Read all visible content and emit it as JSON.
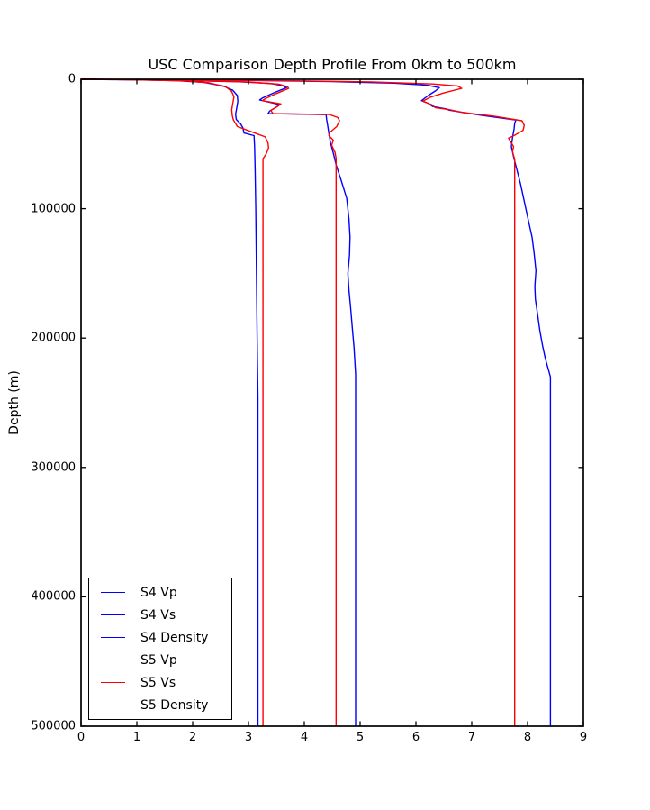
{
  "chart_data": {
    "type": "line",
    "title": "USC Comparison Depth Profile From 0km to 500km",
    "xlabel": "",
    "ylabel": "Depth (m)",
    "xlim": [
      0,
      9
    ],
    "ylim": [
      0,
      500000
    ],
    "y_axis_inverted": true,
    "grid": false,
    "legend_position": "lower left",
    "x_tick_labels": [
      "0",
      "1",
      "2",
      "3",
      "4",
      "5",
      "6",
      "7",
      "8",
      "9"
    ],
    "y_tick_labels": [
      "0",
      "100000",
      "200000",
      "300000",
      "400000",
      "500000"
    ],
    "axis_color": "#000000",
    "series": [
      {
        "name": "S4 Vp",
        "color": "#0000ff",
        "points": [
          [
            0.0,
            0
          ],
          [
            1.5,
            300
          ],
          [
            3.0,
            900
          ],
          [
            4.5,
            1800
          ],
          [
            5.6,
            3000
          ],
          [
            6.2,
            4600
          ],
          [
            6.42,
            6500
          ],
          [
            6.35,
            9000
          ],
          [
            6.22,
            12500
          ],
          [
            6.1,
            16500
          ],
          [
            6.22,
            18500
          ],
          [
            6.3,
            21000
          ],
          [
            6.55,
            23000
          ],
          [
            6.6,
            23900
          ],
          [
            6.82,
            25500
          ],
          [
            7.2,
            28000
          ],
          [
            7.79,
            31500
          ],
          [
            7.77,
            34000
          ],
          [
            7.76,
            38000
          ],
          [
            7.73,
            45000
          ],
          [
            7.71,
            52000
          ],
          [
            7.75,
            60000
          ],
          [
            7.81,
            70000
          ],
          [
            7.87,
            80000
          ],
          [
            7.92,
            90000
          ],
          [
            7.97,
            100000
          ],
          [
            8.02,
            110000
          ],
          [
            8.08,
            122000
          ],
          [
            8.12,
            135000
          ],
          [
            8.15,
            148000
          ],
          [
            8.13,
            160000
          ],
          [
            8.14,
            170000
          ],
          [
            8.18,
            182000
          ],
          [
            8.22,
            194000
          ],
          [
            8.27,
            206000
          ],
          [
            8.32,
            216000
          ],
          [
            8.41,
            230000
          ],
          [
            8.41,
            500000
          ]
        ]
      },
      {
        "name": "S4 Vs",
        "color": "#0000ff",
        "points": [
          [
            0.0,
            0
          ],
          [
            0.8,
            300
          ],
          [
            1.8,
            900
          ],
          [
            2.8,
            1900
          ],
          [
            3.4,
            3300
          ],
          [
            3.62,
            5000
          ],
          [
            3.68,
            6500
          ],
          [
            3.45,
            10500
          ],
          [
            3.25,
            14500
          ],
          [
            3.2,
            16000
          ],
          [
            3.55,
            19500
          ],
          [
            3.5,
            21500
          ],
          [
            3.38,
            24500
          ],
          [
            3.35,
            26500
          ],
          [
            4.39,
            27300
          ],
          [
            4.4,
            31000
          ],
          [
            4.42,
            36000
          ],
          [
            4.44,
            42000
          ],
          [
            4.47,
            49000
          ],
          [
            4.52,
            57000
          ],
          [
            4.57,
            66000
          ],
          [
            4.66,
            78000
          ],
          [
            4.76,
            92000
          ],
          [
            4.8,
            108000
          ],
          [
            4.82,
            122000
          ],
          [
            4.81,
            136000
          ],
          [
            4.78,
            150000
          ],
          [
            4.8,
            163000
          ],
          [
            4.83,
            177000
          ],
          [
            4.86,
            192000
          ],
          [
            4.89,
            207000
          ],
          [
            4.92,
            228000
          ],
          [
            4.92,
            500000
          ]
        ]
      },
      {
        "name": "S4 Density",
        "color": "#0000ff",
        "points": [
          [
            0.0,
            0
          ],
          [
            0.9,
            400
          ],
          [
            1.7,
            1100
          ],
          [
            2.2,
            2400
          ],
          [
            2.55,
            5200
          ],
          [
            2.72,
            8500
          ],
          [
            2.8,
            12500
          ],
          [
            2.81,
            17000
          ],
          [
            2.79,
            22000
          ],
          [
            2.77,
            27000
          ],
          [
            2.78,
            31000
          ],
          [
            2.86,
            34500
          ],
          [
            2.9,
            37500
          ],
          [
            2.92,
            41500
          ],
          [
            3.1,
            43500
          ],
          [
            3.11,
            52000
          ],
          [
            3.12,
            70000
          ],
          [
            3.13,
            100000
          ],
          [
            3.14,
            140000
          ],
          [
            3.15,
            180000
          ],
          [
            3.16,
            215000
          ],
          [
            3.17,
            245000
          ],
          [
            3.17,
            500000
          ]
        ]
      },
      {
        "name": "S5 Vp",
        "color": "#ff0000",
        "points": [
          [
            0.0,
            0
          ],
          [
            1.8,
            350
          ],
          [
            3.5,
            1000
          ],
          [
            5.2,
            2000
          ],
          [
            6.3,
            3600
          ],
          [
            6.75,
            5200
          ],
          [
            6.82,
            7000
          ],
          [
            6.5,
            10500
          ],
          [
            6.25,
            14000
          ],
          [
            6.12,
            17000
          ],
          [
            6.28,
            19500
          ],
          [
            6.35,
            22000
          ],
          [
            6.6,
            23500
          ],
          [
            6.85,
            25800
          ],
          [
            7.4,
            28500
          ],
          [
            7.9,
            32000
          ],
          [
            7.94,
            35500
          ],
          [
            7.92,
            39500
          ],
          [
            7.78,
            43000
          ],
          [
            7.66,
            45500
          ],
          [
            7.7,
            48500
          ],
          [
            7.75,
            52000
          ],
          [
            7.73,
            56000
          ],
          [
            7.77,
            62000
          ],
          [
            7.77,
            500000
          ]
        ]
      },
      {
        "name": "S5 Vs",
        "color": "#ff0000",
        "points": [
          [
            0.0,
            0
          ],
          [
            0.9,
            350
          ],
          [
            2.0,
            1000
          ],
          [
            3.0,
            2100
          ],
          [
            3.55,
            3800
          ],
          [
            3.7,
            5800
          ],
          [
            3.72,
            7000
          ],
          [
            3.5,
            11000
          ],
          [
            3.3,
            15000
          ],
          [
            3.25,
            16500
          ],
          [
            3.58,
            19000
          ],
          [
            3.52,
            21000
          ],
          [
            3.4,
            24000
          ],
          [
            3.44,
            26500
          ],
          [
            4.45,
            27200
          ],
          [
            4.6,
            29500
          ],
          [
            4.63,
            32000
          ],
          [
            4.58,
            36500
          ],
          [
            4.46,
            41000
          ],
          [
            4.44,
            43500
          ],
          [
            4.52,
            47000
          ],
          [
            4.49,
            51000
          ],
          [
            4.55,
            56500
          ],
          [
            4.57,
            61000
          ],
          [
            4.57,
            500000
          ]
        ]
      },
      {
        "name": "S5 Density",
        "color": "#ff0000",
        "points": [
          [
            0.0,
            0
          ],
          [
            1.0,
            450
          ],
          [
            1.9,
            1300
          ],
          [
            2.3,
            2800
          ],
          [
            2.6,
            6000
          ],
          [
            2.7,
            9500
          ],
          [
            2.74,
            13500
          ],
          [
            2.72,
            18500
          ],
          [
            2.7,
            23500
          ],
          [
            2.71,
            28000
          ],
          [
            2.73,
            31500
          ],
          [
            2.8,
            36500
          ],
          [
            3.05,
            40500
          ],
          [
            3.3,
            44500
          ],
          [
            3.35,
            49000
          ],
          [
            3.36,
            53000
          ],
          [
            3.32,
            57500
          ],
          [
            3.26,
            61500
          ],
          [
            3.26,
            500000
          ]
        ]
      }
    ]
  },
  "legend": {
    "entries": [
      {
        "label": "S4 Vp",
        "color": "#0000ff"
      },
      {
        "label": "S4 Vs",
        "color": "#0000ff"
      },
      {
        "label": "S4 Density",
        "color": "#0000ff"
      },
      {
        "label": "S5 Vp",
        "color": "#ff0000"
      },
      {
        "label": "S5 Vs",
        "color": "#ff0000"
      },
      {
        "label": "S5 Density",
        "color": "#ff0000"
      }
    ]
  }
}
